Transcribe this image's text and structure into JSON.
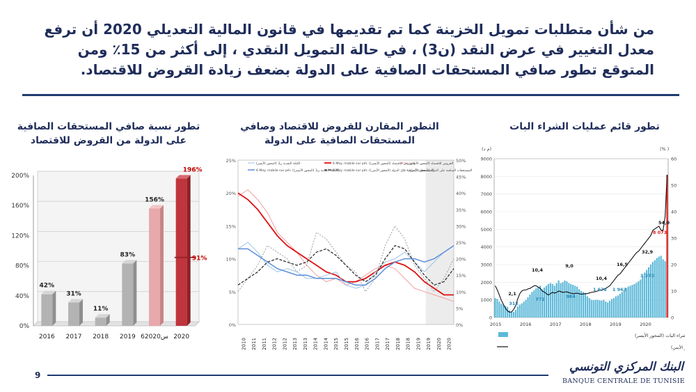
{
  "slide": {
    "headline": "من شأن متطلبات تمويل الخزينة كما تم تقديمها في قانون المالية التعديلي  2020 أن ترفع معدل التغيير في عرض النقد (ن3) ، في حالة التمويل النقدي ، إلى أكثر من 15٪ ومن المتوقع تطور صافي المستحقات الصافية على الدولة بضعف زيادة القروض للاقتصاد.",
    "page_number": "9",
    "logo_ar": "البنك المركزي التونسي",
    "logo_fr": "BANQUE CENTRALE DE TUNISIE"
  },
  "colors": {
    "navy": "#1f2d5a",
    "gray_bar": "#b3b3b3",
    "pink_bar": "#e8a9ac",
    "red_bar": "#c0343c",
    "red_line": "#e01010",
    "blue_line": "#5b8ed8",
    "light_blue": "#9cc3e8",
    "teal_bar": "#5bb8d8"
  },
  "chart_data": [
    {
      "type": "bar",
      "title": "تطور نسبة صافي المستحقات الصافية على الدولة من القروض للاقتصاد",
      "categories": [
        "2016",
        "2017",
        "2018",
        "2019",
        "6س2020",
        "2020"
      ],
      "values": [
        42,
        31,
        11,
        83,
        156,
        196
      ],
      "value_labels": [
        "42%",
        "31%",
        "11%",
        "83%",
        "156%",
        "196%"
      ],
      "marker": {
        "category": "2020",
        "value": 91,
        "label": "91%"
      },
      "yticks": [
        "0%",
        "40%",
        "80%",
        "120%",
        "160%",
        "200%"
      ],
      "ylim": [
        0,
        200
      ],
      "bar_styles": [
        "gray",
        "gray",
        "gray",
        "gray",
        "pink",
        "red"
      ],
      "grid": true
    },
    {
      "type": "line",
      "title": "التطور المقارن للقروض للاقتصاد وصافي المستحقات الصافية على الدولة",
      "left_yticks": [
        "0%",
        "5%",
        "10%",
        "15%",
        "20%",
        "25%"
      ],
      "right_yticks": [
        "0%",
        "5%",
        "10%",
        "15%",
        "20%",
        "25%",
        "30%",
        "35%",
        "40%",
        "45%",
        "50%"
      ],
      "left_ylim": [
        0,
        25
      ],
      "right_ylim": [
        0,
        50
      ],
      "x_year_labels": [
        "2010",
        "2011",
        "2011",
        "2012",
        "2012",
        "2013",
        "2013",
        "2014",
        "2014",
        "2015",
        "2015",
        "2016",
        "2016",
        "2017",
        "2017",
        "2018",
        "2018",
        "2019",
        "2019",
        "2020",
        "2020"
      ],
      "legend": [
        "القروض للاقتصاد (المحور الأيسر)",
        "الكتلة النقدية ن3 (المحور الأيسر)",
        "المستحقات الصافية على الدولة (المحور الأيمن)",
        "6 Moy. mobile sur pér. (الكتلة النقدية ن3 (المحور الأيسر))",
        "6 Moy. mobile sur pér. (القروض للاقتصاد (المحور الأيسر))",
        "6 Moy. mobile sur pér. (المستحقات الصافية على الدولة (المحور الأيمن))"
      ],
      "forecast_shaded_from": "2019",
      "series": [
        {
          "name": "القروض للاقتصاد (المحور الأيسر)",
          "axis": "left",
          "style": "light-red",
          "values": [
            19.5,
            20.5,
            19.0,
            17.0,
            14.0,
            12.5,
            11.0,
            9.0,
            7.5,
            6.5,
            7.0,
            6.0,
            6.5,
            7.5,
            8.5,
            9.0,
            8.5,
            7.0,
            5.5,
            5.0,
            4.5,
            4.0,
            3.5
          ]
        },
        {
          "name": "6 Moy. mobile sur pér. (القروض للاقتصاد (المحور الأيسر))",
          "axis": "left",
          "style": "red-bold",
          "values": [
            20.0,
            19.0,
            17.5,
            15.5,
            13.5,
            12.0,
            11.0,
            10.0,
            9.0,
            8.0,
            7.5,
            6.5,
            6.5,
            7.0,
            8.0,
            9.0,
            9.5,
            9.0,
            8.0,
            6.5,
            5.5,
            4.5,
            4.5
          ]
        },
        {
          "name": "الكتلة النقدية ن3 (المحور الأيسر)",
          "axis": "left",
          "style": "light-blue",
          "values": [
            11.5,
            12.5,
            11.0,
            9.0,
            8.0,
            8.5,
            8.0,
            7.0,
            7.0,
            7.5,
            8.0,
            6.0,
            5.5,
            6.0,
            8.0,
            9.5,
            10.0,
            11.0,
            9.5,
            8.0,
            9.5,
            11.0,
            12.0
          ]
        },
        {
          "name": "6 Moy. mobile sur pér. (الكتلة النقدية ن3 (المحور الأيسر))",
          "axis": "left",
          "style": "blue",
          "values": [
            11.5,
            11.5,
            10.5,
            9.5,
            8.5,
            8.0,
            7.5,
            7.5,
            7.0,
            7.0,
            7.0,
            6.5,
            6.0,
            6.0,
            7.0,
            8.5,
            9.5,
            10.0,
            10.0,
            9.5,
            10.0,
            11.0,
            12.0
          ]
        },
        {
          "name": "المستحقات الصافية على الدولة (المحور الأيمن)",
          "axis": "right",
          "style": "gray-dotted",
          "values": [
            10.0,
            14.0,
            18.0,
            24.0,
            22.0,
            20.0,
            16.0,
            18.0,
            28.0,
            26.0,
            22.0,
            18.0,
            16.0,
            10.0,
            14.0,
            24.0,
            30.0,
            26.0,
            18.0,
            14.0,
            10.0,
            14.0,
            20.0
          ]
        },
        {
          "name": "6 Moy. mobile sur pér. (المستحقات الصافية على الدولة (المحور الأيمن))",
          "axis": "right",
          "style": "black-dashed",
          "values": [
            12.0,
            14.0,
            16.0,
            19.0,
            20.0,
            19.0,
            18.0,
            19.0,
            22.0,
            23.0,
            21.0,
            18.0,
            15.0,
            13.0,
            15.0,
            20.0,
            24.0,
            23.0,
            19.0,
            15.0,
            12.0,
            13.0,
            17.0
          ]
        }
      ]
    },
    {
      "type": "bar",
      "title": "تطور قائم عمليات الشراء البات",
      "left_unit": "(م د)",
      "right_unit": "(% )",
      "left_yticks": [
        "0",
        "1000",
        "2000",
        "3000",
        "4000",
        "5000",
        "6000",
        "7000",
        "8000",
        "9000"
      ],
      "right_yticks": [
        "0",
        "10",
        "20",
        "30",
        "40",
        "50",
        "60"
      ],
      "left_ylim": [
        0,
        9000
      ],
      "right_ylim": [
        0,
        60
      ],
      "x_labels": [
        "2015",
        "2016",
        "2017",
        "2018",
        "2019",
        "2020"
      ],
      "bar_values": [
        1100,
        1050,
        900,
        780,
        720,
        650,
        600,
        400,
        312,
        312,
        420,
        620,
        730,
        800,
        900,
        1000,
        1150,
        1300,
        1450,
        1550,
        1650,
        1750,
        1800,
        1600,
        1700,
        1800,
        1900,
        1950,
        1900,
        1800,
        1950,
        2100,
        1950,
        2000,
        2100,
        2050,
        1950,
        1900,
        1850,
        1800,
        1750,
        1600,
        1500,
        1450,
        1400,
        1200,
        1100,
        1000,
        984,
        1000,
        1000,
        980,
        960,
        1000,
        900,
        850,
        950,
        1050,
        1100,
        1200,
        1250,
        1350,
        1450,
        1550,
        1672,
        1750,
        1800,
        1850,
        1900,
        1963,
        2050,
        2150,
        2350,
        2550,
        2700,
        2850,
        3000,
        3150,
        3250,
        3373,
        3450,
        3500,
        3300,
        3200,
        8073
      ],
      "bar_labels": [
        "312",
        "772",
        "984",
        "1 672",
        "1 963",
        "3 373",
        "8 073"
      ],
      "line_labels": [
        "2,1",
        "10,4",
        "9,0",
        "10,4",
        "16,5",
        "32,9",
        "54,0"
      ],
      "legend": [
        "عمليات الشراء البات (المحور الأيسر)",
        "حصة عمليات الشراء البات من إجمالي حجم إعادة التمويل (المحور الأيمن)"
      ]
    }
  ]
}
